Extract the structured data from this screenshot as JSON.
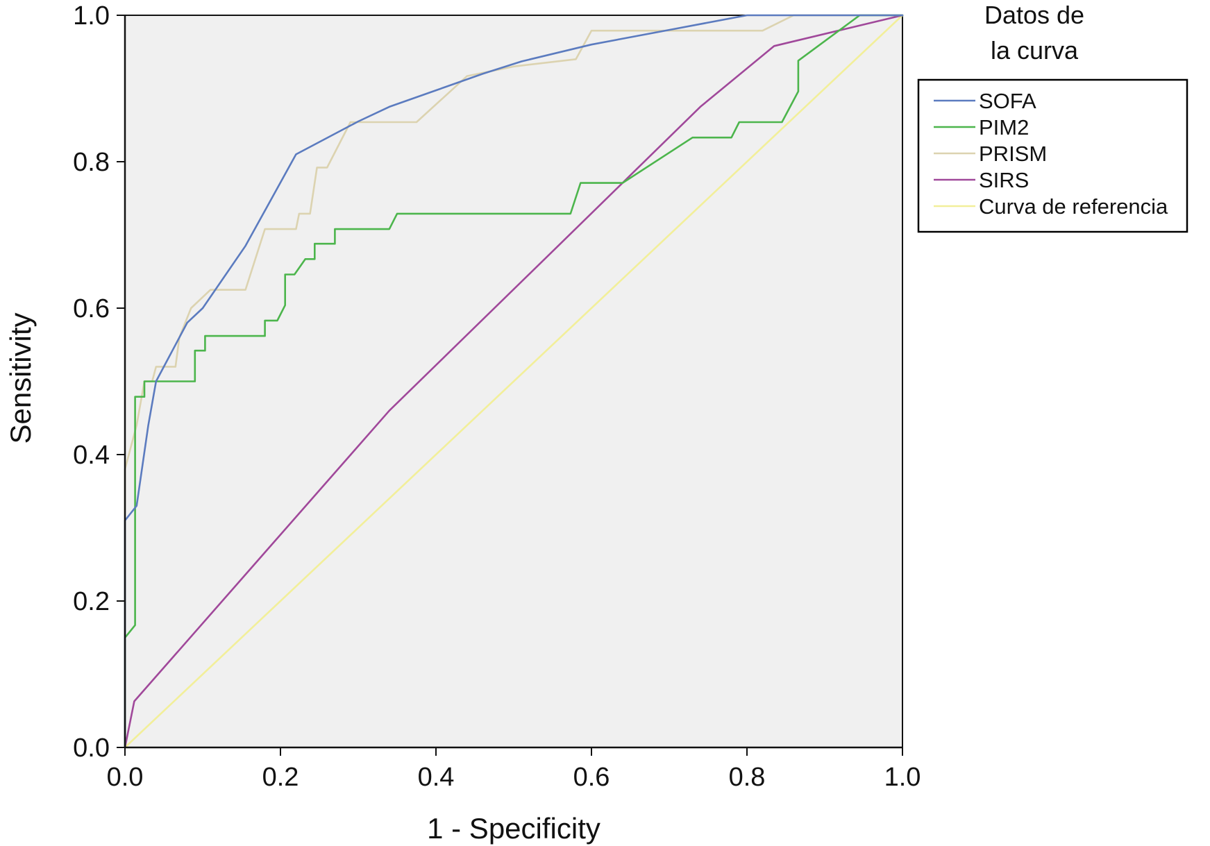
{
  "colors": {
    "background": "#ffffff",
    "plot_area": "#f0f0f0",
    "axis": "#111111",
    "legend_border": "#000000"
  },
  "chart_data": {
    "type": "line",
    "title": "",
    "xlabel": "1 - Specificity",
    "ylabel": "Sensitivity",
    "xlim": [
      0,
      1
    ],
    "ylim": [
      0,
      1
    ],
    "x_ticks": [
      "0.0",
      "0.2",
      "0.4",
      "0.6",
      "0.8",
      "1.0"
    ],
    "y_ticks": [
      "0.0",
      "0.2",
      "0.4",
      "0.6",
      "0.8",
      "1.0"
    ],
    "grid": false,
    "legend": {
      "title_lines": [
        "Datos de",
        "la curva"
      ],
      "placement": "right"
    },
    "series": [
      {
        "name": "SOFA",
        "color": "#5b7bbf",
        "points": [
          [
            0,
            0
          ],
          [
            0,
            0.31
          ],
          [
            0.015,
            0.33
          ],
          [
            0.03,
            0.44
          ],
          [
            0.04,
            0.5
          ],
          [
            0.06,
            0.54
          ],
          [
            0.08,
            0.58
          ],
          [
            0.1,
            0.6
          ],
          [
            0.155,
            0.685
          ],
          [
            0.22,
            0.81
          ],
          [
            0.3,
            0.855
          ],
          [
            0.34,
            0.875
          ],
          [
            0.46,
            0.92
          ],
          [
            0.51,
            0.937
          ],
          [
            0.6,
            0.96
          ],
          [
            0.7,
            0.98
          ],
          [
            0.8,
            1.0
          ],
          [
            1.0,
            1.0
          ]
        ]
      },
      {
        "name": "PIM2",
        "color": "#4cb54c",
        "points": [
          [
            0,
            0
          ],
          [
            0,
            0.15
          ],
          [
            0.013,
            0.167
          ],
          [
            0.013,
            0.479
          ],
          [
            0.025,
            0.479
          ],
          [
            0.025,
            0.5
          ],
          [
            0.09,
            0.5
          ],
          [
            0.09,
            0.542
          ],
          [
            0.103,
            0.542
          ],
          [
            0.103,
            0.562
          ],
          [
            0.18,
            0.562
          ],
          [
            0.18,
            0.583
          ],
          [
            0.196,
            0.583
          ],
          [
            0.206,
            0.604
          ],
          [
            0.206,
            0.646
          ],
          [
            0.218,
            0.646
          ],
          [
            0.232,
            0.667
          ],
          [
            0.244,
            0.667
          ],
          [
            0.244,
            0.688
          ],
          [
            0.27,
            0.688
          ],
          [
            0.27,
            0.708
          ],
          [
            0.34,
            0.708
          ],
          [
            0.35,
            0.729
          ],
          [
            0.573,
            0.729
          ],
          [
            0.586,
            0.771
          ],
          [
            0.64,
            0.771
          ],
          [
            0.73,
            0.833
          ],
          [
            0.78,
            0.833
          ],
          [
            0.79,
            0.854
          ],
          [
            0.845,
            0.854
          ],
          [
            0.866,
            0.896
          ],
          [
            0.866,
            0.938
          ],
          [
            0.945,
            1.0
          ],
          [
            1.0,
            1.0
          ]
        ]
      },
      {
        "name": "PRISM",
        "color": "#dcd3b0",
        "points": [
          [
            0,
            0
          ],
          [
            0,
            0.38
          ],
          [
            0.015,
            0.44
          ],
          [
            0.025,
            0.5
          ],
          [
            0.035,
            0.5
          ],
          [
            0.04,
            0.52
          ],
          [
            0.065,
            0.52
          ],
          [
            0.07,
            0.56
          ],
          [
            0.085,
            0.6
          ],
          [
            0.11,
            0.625
          ],
          [
            0.155,
            0.625
          ],
          [
            0.18,
            0.708
          ],
          [
            0.22,
            0.708
          ],
          [
            0.224,
            0.729
          ],
          [
            0.238,
            0.729
          ],
          [
            0.247,
            0.792
          ],
          [
            0.26,
            0.792
          ],
          [
            0.29,
            0.854
          ],
          [
            0.375,
            0.854
          ],
          [
            0.44,
            0.917
          ],
          [
            0.5,
            0.93
          ],
          [
            0.58,
            0.94
          ],
          [
            0.6,
            0.979
          ],
          [
            0.82,
            0.979
          ],
          [
            0.86,
            1.0
          ],
          [
            1.0,
            1.0
          ]
        ]
      },
      {
        "name": "SIRS",
        "color": "#a0489a",
        "points": [
          [
            0,
            0
          ],
          [
            0.012,
            0.063
          ],
          [
            0.34,
            0.46
          ],
          [
            0.56,
            0.688
          ],
          [
            0.74,
            0.875
          ],
          [
            0.835,
            0.958
          ],
          [
            1.0,
            1.0
          ]
        ]
      },
      {
        "name": "Curva de referencia",
        "color": "#f2ef9a",
        "points": [
          [
            0,
            0
          ],
          [
            1,
            1
          ]
        ]
      }
    ]
  }
}
